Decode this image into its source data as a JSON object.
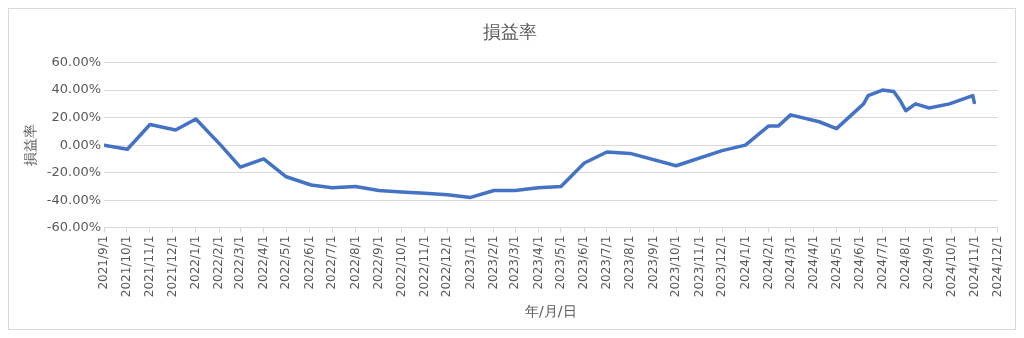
{
  "chart_data": {
    "type": "line",
    "title": "損益率",
    "xlabel": "年/月/日",
    "ylabel": "損益率",
    "x": [
      "2021-09-01",
      "2021-10-02",
      "2021-11-01",
      "2021-12-05",
      "2022-01-01",
      "2022-02-03",
      "2022-03-01",
      "2022-04-01",
      "2022-05-01",
      "2022-06-03",
      "2022-07-01",
      "2022-08-01",
      "2022-09-01",
      "2022-10-01",
      "2022-11-01",
      "2022-12-01",
      "2023-01-01",
      "2023-02-01",
      "2023-03-01",
      "2023-04-01",
      "2023-05-01",
      "2023-06-01",
      "2023-07-01",
      "2023-08-01",
      "2023-10-01",
      "2023-12-01",
      "2024-01-01",
      "2024-02-01",
      "2024-02-14",
      "2024-03-01",
      "2024-04-08",
      "2024-05-01",
      "2024-06-06",
      "2024-06-12",
      "2024-07-01",
      "2024-07-16",
      "2024-07-25",
      "2024-08-01",
      "2024-08-14",
      "2024-09-01",
      "2024-09-28",
      "2024-10-29",
      "2024-10-31"
    ],
    "series": [
      {
        "color": "#4472c4",
        "values": [
          0,
          -3,
          15,
          11,
          19,
          0,
          -16,
          -10,
          -23,
          -29,
          -31,
          -30,
          -33,
          -34,
          -35,
          -36,
          -38,
          -33,
          -33,
          -31,
          -30,
          -13,
          -5,
          -6,
          -15,
          -4,
          0,
          14,
          14,
          22,
          17,
          12,
          30,
          36,
          40,
          39,
          32,
          25,
          30,
          27,
          30,
          36,
          31
        ]
      }
    ],
    "ylim": [
      -60,
      60
    ],
    "yticks": [
      {
        "value": -60,
        "label": "-60.00%"
      },
      {
        "value": -40,
        "label": "-40.00%"
      },
      {
        "value": -20,
        "label": "-20.00%"
      },
      {
        "value": 0,
        "label": "0.00%"
      },
      {
        "value": 20,
        "label": "20.00%"
      },
      {
        "value": 40,
        "label": "40.00%"
      },
      {
        "value": 60,
        "label": "60.00%"
      }
    ],
    "xlim": [
      "2021-09-01",
      "2024-12-01"
    ],
    "xticks": [
      {
        "value": "2021-09-01",
        "label": "2021/9/1"
      },
      {
        "value": "2021-10-01",
        "label": "2021/10/1"
      },
      {
        "value": "2021-11-01",
        "label": "2021/11/1"
      },
      {
        "value": "2021-12-01",
        "label": "2021/12/1"
      },
      {
        "value": "2022-01-01",
        "label": "2022/1/1"
      },
      {
        "value": "2022-02-01",
        "label": "2022/2/1"
      },
      {
        "value": "2022-03-01",
        "label": "2022/3/1"
      },
      {
        "value": "2022-04-01",
        "label": "2022/4/1"
      },
      {
        "value": "2022-05-01",
        "label": "2022/5/1"
      },
      {
        "value": "2022-06-01",
        "label": "2022/6/1"
      },
      {
        "value": "2022-07-01",
        "label": "2022/7/1"
      },
      {
        "value": "2022-08-01",
        "label": "2022/8/1"
      },
      {
        "value": "2022-09-01",
        "label": "2022/9/1"
      },
      {
        "value": "2022-10-01",
        "label": "2022/10/1"
      },
      {
        "value": "2022-11-01",
        "label": "2022/11/1"
      },
      {
        "value": "2022-12-01",
        "label": "2022/12/1"
      },
      {
        "value": "2023-01-01",
        "label": "2023/1/1"
      },
      {
        "value": "2023-02-01",
        "label": "2023/2/1"
      },
      {
        "value": "2023-03-01",
        "label": "2023/3/1"
      },
      {
        "value": "2023-04-01",
        "label": "2023/4/1"
      },
      {
        "value": "2023-05-01",
        "label": "2023/5/1"
      },
      {
        "value": "2023-06-01",
        "label": "2023/6/1"
      },
      {
        "value": "2023-07-01",
        "label": "2023/7/1"
      },
      {
        "value": "2023-08-01",
        "label": "2023/8/1"
      },
      {
        "value": "2023-09-01",
        "label": "2023/9/1"
      },
      {
        "value": "2023-10-01",
        "label": "2023/10/1"
      },
      {
        "value": "2023-11-01",
        "label": "2023/11/1"
      },
      {
        "value": "2023-12-01",
        "label": "2023/12/1"
      },
      {
        "value": "2024-01-01",
        "label": "2024/1/1"
      },
      {
        "value": "2024-02-01",
        "label": "2024/2/1"
      },
      {
        "value": "2024-03-01",
        "label": "2024/3/1"
      },
      {
        "value": "2024-04-01",
        "label": "2024/4/1"
      },
      {
        "value": "2024-05-01",
        "label": "2024/5/1"
      },
      {
        "value": "2024-06-01",
        "label": "2024/6/1"
      },
      {
        "value": "2024-07-01",
        "label": "2024/7/1"
      },
      {
        "value": "2024-08-01",
        "label": "2024/8/1"
      },
      {
        "value": "2024-09-01",
        "label": "2024/9/1"
      },
      {
        "value": "2024-10-01",
        "label": "2024/10/1"
      },
      {
        "value": "2024-11-01",
        "label": "2024/11/1"
      },
      {
        "value": "2024-12-01",
        "label": "2024/12/1"
      }
    ],
    "grid": "y",
    "legend": false,
    "marker": "none",
    "line_style": "solid"
  }
}
